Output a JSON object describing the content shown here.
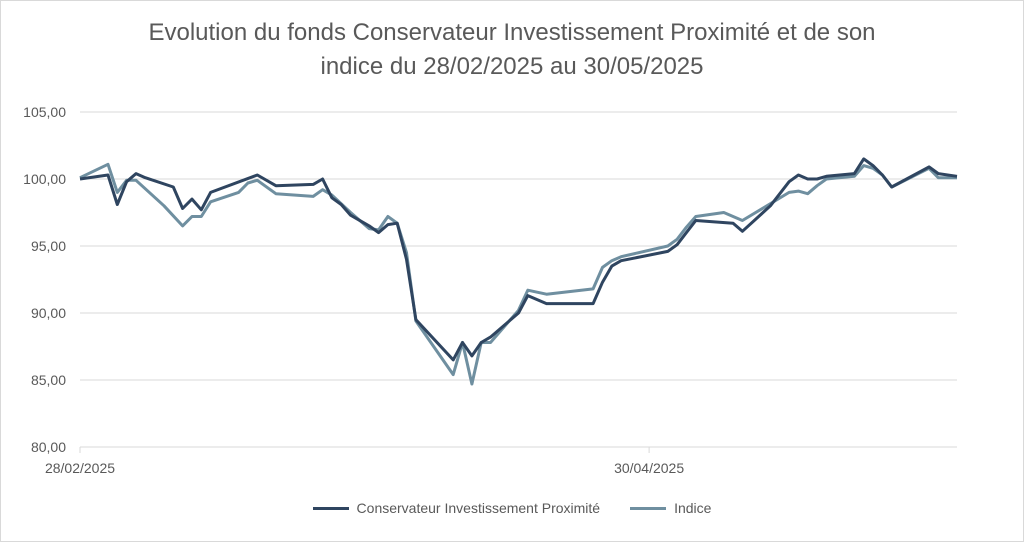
{
  "title_line1": "Evolution du fonds Conservateur Investissement Proximité et de son",
  "title_line2": "indice du 28/02/2025 au 30/05/2025",
  "chart_data": {
    "type": "line",
    "title": "Evolution du fonds Conservateur Investissement Proximité et de son indice du 28/02/2025 au 30/05/2025",
    "xlabel": "",
    "ylabel": "",
    "ylim": [
      80,
      105
    ],
    "yticks": [
      "80,00",
      "85,00",
      "90,00",
      "95,00",
      "100,00",
      "105,00"
    ],
    "yticks_values": [
      80,
      85,
      90,
      95,
      100,
      105
    ],
    "xtick_labels": [
      "28/02/2025",
      "30/04/2025"
    ],
    "xtick_index": [
      0,
      61
    ],
    "x_count": 92,
    "grid": true,
    "legend_position": "bottom",
    "series": [
      {
        "name": "Conservateur Investissement Proximité",
        "color": "#2f4560",
        "points": [
          [
            0,
            100.0
          ],
          [
            3,
            100.3
          ],
          [
            4,
            98.1
          ],
          [
            5,
            99.8
          ],
          [
            6,
            100.4
          ],
          [
            7,
            100.1
          ],
          [
            10,
            99.4
          ],
          [
            11,
            97.8
          ],
          [
            12,
            98.5
          ],
          [
            13,
            97.7
          ],
          [
            14,
            99.0
          ],
          [
            19,
            100.3
          ],
          [
            21,
            99.5
          ],
          [
            25,
            99.6
          ],
          [
            26,
            100.0
          ],
          [
            27,
            98.6
          ],
          [
            28,
            98.1
          ],
          [
            29,
            97.3
          ],
          [
            31,
            96.5
          ],
          [
            32,
            96.0
          ],
          [
            33,
            96.6
          ],
          [
            34,
            96.7
          ],
          [
            35,
            94.0
          ],
          [
            36,
            89.5
          ],
          [
            40,
            86.5
          ],
          [
            41,
            87.8
          ],
          [
            42,
            86.8
          ],
          [
            43,
            87.8
          ],
          [
            44,
            88.2
          ],
          [
            47,
            90.0
          ],
          [
            48,
            91.3
          ],
          [
            50,
            90.7
          ],
          [
            55,
            90.7
          ],
          [
            56,
            92.3
          ],
          [
            57,
            93.5
          ],
          [
            58,
            93.9
          ],
          [
            63,
            94.6
          ],
          [
            64,
            95.1
          ],
          [
            65,
            96.0
          ],
          [
            66,
            96.9
          ],
          [
            70,
            96.7
          ],
          [
            71,
            96.1
          ],
          [
            74,
            98.0
          ],
          [
            76,
            99.8
          ],
          [
            77,
            100.3
          ],
          [
            78,
            100.0
          ],
          [
            79,
            100.0
          ],
          [
            80,
            100.2
          ],
          [
            83,
            100.4
          ],
          [
            84,
            101.5
          ],
          [
            85,
            101.0
          ],
          [
            86,
            100.3
          ],
          [
            87,
            99.4
          ],
          [
            91,
            100.9
          ],
          [
            92,
            100.4
          ],
          [
            94,
            100.2
          ]
        ]
      },
      {
        "name": "Indice",
        "color": "#6f8fa0",
        "points": [
          [
            0,
            100.1
          ],
          [
            3,
            101.1
          ],
          [
            4,
            99.0
          ],
          [
            5,
            99.9
          ],
          [
            6,
            99.9
          ],
          [
            9,
            98.0
          ],
          [
            11,
            96.5
          ],
          [
            12,
            97.2
          ],
          [
            13,
            97.2
          ],
          [
            14,
            98.3
          ],
          [
            17,
            99.0
          ],
          [
            18,
            99.7
          ],
          [
            19,
            99.9
          ],
          [
            21,
            98.9
          ],
          [
            25,
            98.7
          ],
          [
            26,
            99.2
          ],
          [
            27,
            98.8
          ],
          [
            29,
            97.5
          ],
          [
            31,
            96.3
          ],
          [
            32,
            96.2
          ],
          [
            33,
            97.2
          ],
          [
            34,
            96.7
          ],
          [
            35,
            94.5
          ],
          [
            36,
            89.4
          ],
          [
            40,
            85.4
          ],
          [
            41,
            87.8
          ],
          [
            42,
            84.7
          ],
          [
            43,
            87.8
          ],
          [
            44,
            87.8
          ],
          [
            47,
            90.2
          ],
          [
            48,
            91.7
          ],
          [
            50,
            91.4
          ],
          [
            55,
            91.8
          ],
          [
            56,
            93.4
          ],
          [
            57,
            93.9
          ],
          [
            58,
            94.2
          ],
          [
            63,
            95.0
          ],
          [
            64,
            95.5
          ],
          [
            65,
            96.4
          ],
          [
            66,
            97.2
          ],
          [
            69,
            97.5
          ],
          [
            70,
            97.2
          ],
          [
            71,
            96.9
          ],
          [
            76,
            99.0
          ],
          [
            77,
            99.1
          ],
          [
            78,
            98.9
          ],
          [
            79,
            99.5
          ],
          [
            80,
            100.0
          ],
          [
            83,
            100.2
          ],
          [
            84,
            101.0
          ],
          [
            85,
            100.8
          ],
          [
            86,
            100.3
          ],
          [
            87,
            99.4
          ],
          [
            91,
            100.8
          ],
          [
            92,
            100.1
          ],
          [
            94,
            100.1
          ]
        ]
      }
    ]
  }
}
